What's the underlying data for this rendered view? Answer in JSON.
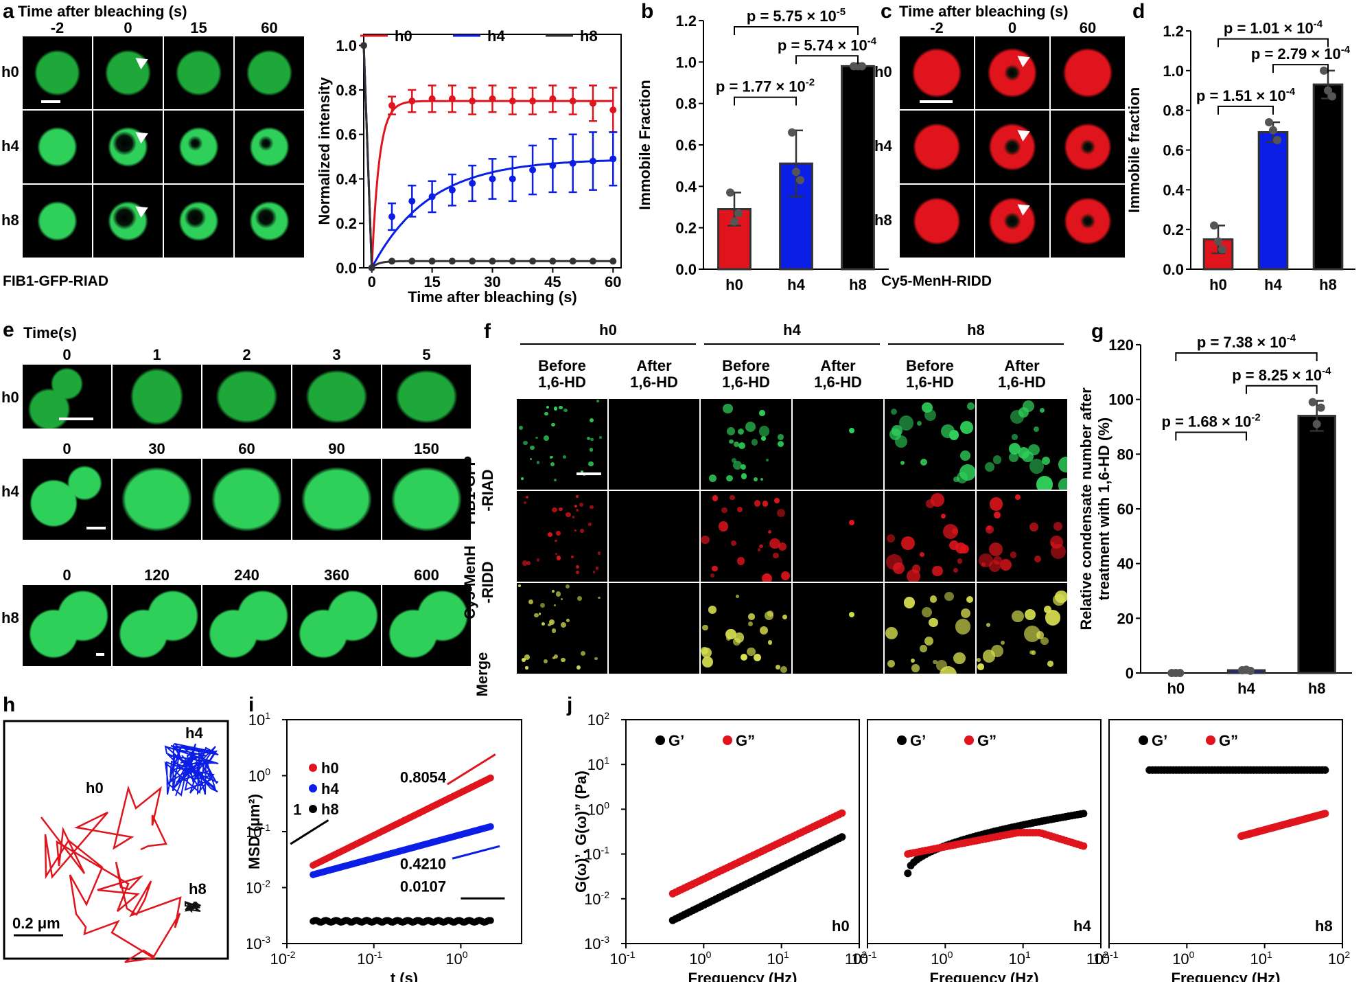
{
  "panels": {
    "a": {
      "letter": "a",
      "header": "Time after bleaching (s)",
      "times": [
        "-2",
        "0",
        "15",
        "60"
      ],
      "rows": [
        "h0",
        "h4",
        "h8"
      ],
      "caption": "FIB1-GFP-RIAD",
      "color": "#2fd05a"
    },
    "c": {
      "letter": "c",
      "header": "Time after bleaching (s)",
      "times": [
        "-2",
        "0",
        "60"
      ],
      "rows": [
        "h0",
        "h4",
        "h8"
      ],
      "caption": "Cy5-MenH-RIDD",
      "color": "#e0141c"
    },
    "e": {
      "letter": "e",
      "header": "Time(s)",
      "rows": [
        {
          "label": "h0",
          "times": [
            "0",
            "1",
            "2",
            "3",
            "5"
          ]
        },
        {
          "label": "h4",
          "times": [
            "0",
            "30",
            "60",
            "90",
            "150"
          ]
        },
        {
          "label": "h8",
          "times": [
            "0",
            "120",
            "240",
            "360",
            "600"
          ]
        }
      ]
    },
    "f": {
      "letter": "f",
      "groups": [
        "h0",
        "h4",
        "h8"
      ],
      "cols": [
        "Before\n1,6-HD",
        "After\n1,6-HD",
        "Before\n1,6-HD",
        "After\n1,6-HD",
        "Before\n1,6-HD",
        "After\n1,6-HD"
      ],
      "rows": [
        "FIB1-GFP\n-RIAD",
        "Cy5-MenH\n-RIDD",
        "Merge"
      ]
    },
    "h": {
      "letter": "h",
      "labels": [
        "h0",
        "h4",
        "h8"
      ],
      "scale": "0.2 μm"
    }
  },
  "chart_data": [
    {
      "id": "a-curve",
      "type": "line",
      "xlabel": "Time after bleaching (s)",
      "ylabel": "Normalized intensity",
      "xlim": [
        -2,
        62
      ],
      "ylim": [
        0,
        1.05
      ],
      "xticks": [
        0,
        15,
        30,
        45,
        60
      ],
      "yticks": [
        0.0,
        0.2,
        0.4,
        0.6,
        0.8,
        1.0
      ],
      "series": [
        {
          "name": "h0",
          "color": "#e0141c",
          "x": [
            0,
            5,
            10,
            15,
            20,
            25,
            30,
            35,
            40,
            45,
            50,
            55,
            60
          ],
          "y": [
            0.0,
            0.73,
            0.75,
            0.76,
            0.76,
            0.75,
            0.76,
            0.75,
            0.75,
            0.76,
            0.75,
            0.74,
            0.71
          ],
          "err": [
            0.0,
            0.04,
            0.05,
            0.06,
            0.06,
            0.06,
            0.06,
            0.06,
            0.06,
            0.06,
            0.06,
            0.08,
            0.1
          ],
          "fit": {
            "a": 0.75,
            "k": 0.55
          }
        },
        {
          "name": "h4",
          "color": "#0a1ee6",
          "x": [
            0,
            5,
            10,
            15,
            20,
            25,
            30,
            35,
            40,
            45,
            50,
            55,
            60
          ],
          "y": [
            0.0,
            0.23,
            0.3,
            0.32,
            0.35,
            0.38,
            0.4,
            0.4,
            0.44,
            0.46,
            0.47,
            0.48,
            0.49
          ],
          "err": [
            0.0,
            0.06,
            0.07,
            0.07,
            0.07,
            0.08,
            0.09,
            0.1,
            0.11,
            0.12,
            0.13,
            0.13,
            0.12
          ],
          "fit": {
            "a": 0.49,
            "k": 0.07
          }
        },
        {
          "name": "h8",
          "color": "#333333",
          "x": [
            0,
            5,
            10,
            15,
            20,
            25,
            30,
            35,
            40,
            45,
            50,
            55,
            60
          ],
          "y": [
            0.0,
            0.03,
            0.03,
            0.03,
            0.03,
            0.03,
            0.03,
            0.03,
            0.03,
            0.03,
            0.03,
            0.03,
            0.03
          ],
          "err": [
            0,
            0,
            0,
            0,
            0,
            0,
            0,
            0,
            0,
            0,
            0,
            0,
            0
          ],
          "fit": {
            "a": 0.03,
            "k": 0.6
          }
        }
      ],
      "prebleach": {
        "x": -2,
        "y": 1.0
      },
      "legend": [
        "h0",
        "h4",
        "h8"
      ]
    },
    {
      "id": "b",
      "type": "bar",
      "ylabel": "Immobile Fraction",
      "categories": [
        "h0",
        "h4",
        "h8"
      ],
      "values": [
        0.29,
        0.51,
        0.98
      ],
      "err": [
        0.08,
        0.16,
        0.005
      ],
      "points": [
        [
          0.37,
          0.23,
          0.27
        ],
        [
          0.66,
          0.47,
          0.43
        ],
        [
          0.98,
          0.98,
          0.98
        ]
      ],
      "colors": [
        "#e0141c",
        "#0a1ee6",
        "#000000"
      ],
      "ylim": [
        0,
        1.2
      ],
      "yticks": [
        0.0,
        0.2,
        0.4,
        0.6,
        0.8,
        1.0,
        1.2
      ],
      "pvalues": [
        {
          "text": "p = 1.77 × 10",
          "exp": "-2",
          "from": 0,
          "to": 1,
          "level": 0.83
        },
        {
          "text": "p = 5.74 × 10",
          "exp": "-4",
          "from": 1,
          "to": 2,
          "level": 1.03
        },
        {
          "text": "p = 5.75 × 10",
          "exp": "-5",
          "from": 0,
          "to": 2,
          "level": 1.17
        }
      ]
    },
    {
      "id": "d",
      "type": "bar",
      "ylabel": "Immobile fraction",
      "categories": [
        "h0",
        "h4",
        "h8"
      ],
      "values": [
        0.15,
        0.69,
        0.93
      ],
      "err": [
        0.07,
        0.05,
        0.07
      ],
      "points": [
        [
          0.22,
          0.14,
          0.1
        ],
        [
          0.74,
          0.7,
          0.65
        ],
        [
          1.0,
          0.9,
          0.87
        ]
      ],
      "colors": [
        "#e0141c",
        "#0a1ee6",
        "#000000"
      ],
      "ylim": [
        0,
        1.2
      ],
      "yticks": [
        0.0,
        0.2,
        0.4,
        0.6,
        0.8,
        1.0,
        1.2
      ],
      "pvalues": [
        {
          "text": "p = 1.51 × 10",
          "exp": "-4",
          "from": 0,
          "to": 1,
          "level": 0.82
        },
        {
          "text": "p = 2.79 × 10",
          "exp": "-4",
          "from": 1,
          "to": 2,
          "level": 1.03
        },
        {
          "text": "p = 1.01 × 10",
          "exp": "-4",
          "from": 0,
          "to": 2,
          "level": 1.16
        }
      ]
    },
    {
      "id": "g",
      "type": "bar",
      "ylabel": "Relative condensate number after\ntreatment with 1,6-HD (%)",
      "categories": [
        "h0",
        "h4",
        "h8"
      ],
      "values": [
        0.0,
        1.0,
        94.0
      ],
      "err": [
        0.0,
        0.5,
        5.5
      ],
      "points": [
        [
          0,
          0,
          0
        ],
        [
          1,
          1.2,
          0.8
        ],
        [
          99,
          91,
          97
        ]
      ],
      "colors": [
        "#e0141c",
        "#0a1ee6",
        "#000000"
      ],
      "ylim": [
        0,
        120
      ],
      "yticks": [
        0,
        20,
        40,
        60,
        80,
        100,
        120
      ],
      "pvalues": [
        {
          "text": "p = 1.68 × 10",
          "exp": "-2",
          "from": 0,
          "to": 1,
          "level": 88
        },
        {
          "text": "p = 8.25 × 10",
          "exp": "-4",
          "from": 1,
          "to": 2,
          "level": 105
        },
        {
          "text": "p = 7.38 × 10",
          "exp": "-4",
          "from": 0,
          "to": 2,
          "level": 117
        }
      ]
    },
    {
      "id": "i",
      "type": "scatter",
      "xscale": "log",
      "yscale": "log",
      "xlabel": "t (s)",
      "ylabel": "MSD (μm²)",
      "xlim": [
        0.01,
        5
      ],
      "ylim": [
        0.001,
        10
      ],
      "series": [
        {
          "name": "h0",
          "color": "#e0141c",
          "y0": 0.025,
          "slope": 0.8054
        },
        {
          "name": "h4",
          "color": "#0a1ee6",
          "y0": 0.017,
          "slope": 0.421
        },
        {
          "name": "h8",
          "color": "#000000",
          "y0": 0.0025,
          "slope": 0.0107
        }
      ],
      "slope_labels": [
        "0.8054",
        "0.4210",
        "0.0107",
        "1"
      ]
    },
    {
      "id": "j",
      "type": "scatter",
      "xscale": "log",
      "yscale": "log",
      "xlabel": "Frequency (Hz)",
      "ylabel": "G(ω)’, G(ω)” (Pa)",
      "xlim": [
        0.1,
        100
      ],
      "ylim": [
        0.001,
        100
      ],
      "legend": [
        "G’",
        "G”"
      ],
      "panels": [
        {
          "label": "h0",
          "gp": {
            "x0": 0.4,
            "x1": 60,
            "y0": 0.0033,
            "y1": 0.24
          },
          "gpp": {
            "x0": 0.4,
            "x1": 60,
            "y0": 0.013,
            "y1": 0.82
          }
        },
        {
          "label": "h4",
          "gp": {
            "x0": 0.33,
            "x1": 60,
            "curve": "rising",
            "y0": 0.037,
            "ymid": 0.45,
            "y1": 0.85
          },
          "gpp": {
            "x0": 0.33,
            "x1": 60,
            "curve": "flat",
            "y0": 0.1,
            "ymid": 0.3,
            "y1": 0.14
          }
        },
        {
          "label": "h8",
          "gp": {
            "x0": 0.33,
            "x1": 60,
            "y0": 7.5,
            "y1": 7.5
          },
          "gpp": {
            "x0": 5,
            "x1": 60,
            "y0": 0.25,
            "y1": 0.8
          }
        }
      ]
    }
  ]
}
